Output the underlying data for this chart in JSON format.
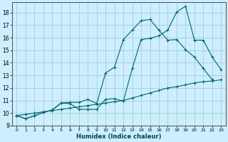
{
  "xlabel": "Humidex (Indice chaleur)",
  "bg_color": "#cceeff",
  "grid_color": "#aacccc",
  "line_color": "#006666",
  "xlim": [
    -0.5,
    23.5
  ],
  "ylim": [
    9,
    18.8
  ],
  "yticks": [
    9,
    10,
    11,
    12,
    13,
    14,
    15,
    16,
    17,
    18
  ],
  "xticks": [
    0,
    1,
    2,
    3,
    4,
    5,
    6,
    7,
    8,
    9,
    10,
    11,
    12,
    13,
    14,
    15,
    16,
    17,
    18,
    19,
    20,
    21,
    22,
    23
  ],
  "line1_x": [
    0,
    1,
    2,
    3,
    4,
    5,
    6,
    7,
    8,
    9,
    10,
    11,
    12,
    13,
    14,
    15,
    16,
    17,
    18,
    19,
    20,
    21,
    22,
    23
  ],
  "line1_y": [
    9.8,
    9.55,
    9.8,
    10.05,
    10.25,
    10.8,
    10.75,
    10.3,
    10.3,
    10.3,
    11.1,
    11.15,
    10.95,
    13.55,
    15.85,
    15.95,
    16.15,
    16.6,
    18.05,
    18.5,
    15.8,
    15.8,
    14.45,
    13.45
  ],
  "line2_x": [
    0,
    1,
    2,
    3,
    4,
    5,
    6,
    7,
    8,
    9,
    10,
    11,
    12,
    13,
    14,
    15,
    16,
    17,
    18,
    19,
    20,
    21,
    22
  ],
  "line2_y": [
    9.8,
    9.55,
    9.8,
    10.05,
    10.25,
    10.8,
    10.85,
    10.85,
    11.1,
    10.75,
    13.2,
    13.65,
    15.85,
    16.6,
    17.35,
    17.45,
    16.6,
    15.8,
    15.85,
    15.05,
    14.45,
    13.55,
    12.65
  ],
  "line3_x": [
    0,
    1,
    2,
    3,
    4,
    5,
    6,
    7,
    8,
    9,
    10,
    11,
    12,
    13,
    14,
    15,
    16,
    17,
    18,
    19,
    20,
    21,
    22,
    23
  ],
  "line3_y": [
    9.8,
    9.9,
    10.0,
    10.1,
    10.2,
    10.3,
    10.4,
    10.5,
    10.6,
    10.7,
    10.8,
    10.9,
    11.0,
    11.2,
    11.4,
    11.6,
    11.8,
    12.0,
    12.1,
    12.25,
    12.4,
    12.5,
    12.55,
    12.65
  ]
}
